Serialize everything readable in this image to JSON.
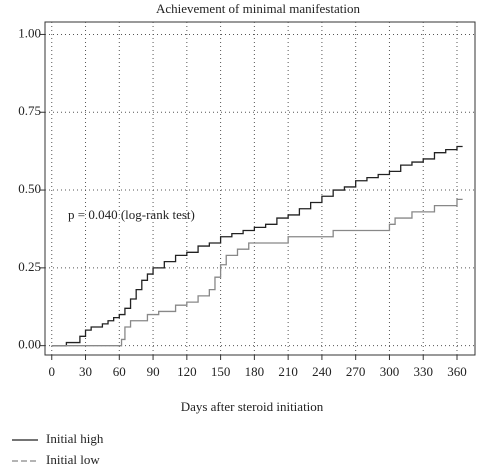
{
  "chart_data": {
    "type": "step",
    "title": "Achievement of minimal manifestation",
    "x_label": "Days after steroid initiation",
    "annotation": "p = 0.040 (log-rank test)",
    "series": [
      {
        "name": "Initial high",
        "color": "#222222",
        "x": [
          0,
          13,
          25,
          30,
          35,
          45,
          50,
          55,
          60,
          65,
          70,
          75,
          80,
          85,
          90,
          100,
          110,
          120,
          130,
          140,
          150,
          160,
          170,
          180,
          190,
          200,
          210,
          220,
          230,
          240,
          250,
          260,
          270,
          280,
          290,
          300,
          310,
          320,
          330,
          340,
          350,
          360,
          365
        ],
        "values": [
          0,
          0.01,
          0.03,
          0.05,
          0.06,
          0.07,
          0.08,
          0.09,
          0.1,
          0.12,
          0.15,
          0.18,
          0.21,
          0.23,
          0.25,
          0.27,
          0.29,
          0.3,
          0.32,
          0.33,
          0.35,
          0.36,
          0.37,
          0.38,
          0.39,
          0.41,
          0.42,
          0.44,
          0.46,
          0.48,
          0.5,
          0.51,
          0.53,
          0.54,
          0.55,
          0.56,
          0.58,
          0.59,
          0.6,
          0.62,
          0.63,
          0.64,
          0.64
        ]
      },
      {
        "name": "Initial low",
        "color": "#888888",
        "x": [
          0,
          62,
          65,
          70,
          85,
          95,
          110,
          120,
          130,
          140,
          145,
          150,
          155,
          165,
          175,
          210,
          250,
          300,
          305,
          320,
          340,
          360,
          365
        ],
        "values": [
          0,
          0.02,
          0.06,
          0.08,
          0.1,
          0.11,
          0.13,
          0.14,
          0.16,
          0.18,
          0.22,
          0.26,
          0.29,
          0.31,
          0.33,
          0.35,
          0.37,
          0.39,
          0.41,
          0.43,
          0.45,
          0.47,
          0.47
        ]
      }
    ],
    "xlim": [
      -6,
      376
    ],
    "xticks": [
      0,
      30,
      60,
      90,
      120,
      150,
      180,
      210,
      240,
      270,
      300,
      330,
      360
    ],
    "ylim": [
      -0.03,
      1.04
    ],
    "yticks": [
      {
        "value": 0,
        "label": "0.00"
      },
      {
        "value": 0.25,
        "label": "0.25"
      },
      {
        "value": 0.5,
        "label": "0.50"
      },
      {
        "value": 0.75,
        "label": "0.75"
      },
      {
        "value": 1,
        "label": "1.00"
      }
    ],
    "grid": true
  }
}
